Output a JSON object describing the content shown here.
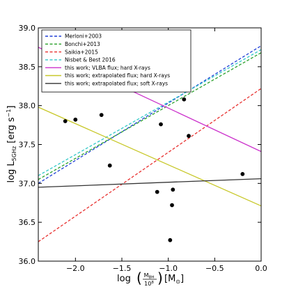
{
  "chart_data": {
    "type": "scatter",
    "xlim": [
      -2.4,
      0.0
    ],
    "ylim": [
      36.0,
      39.0
    ],
    "grid": false,
    "legend_position": "top-left",
    "xlabel": {
      "prefix": "log",
      "num": "M",
      "num_sub": "BH",
      "den": "10",
      "den_sup": "8",
      "unit": "[M",
      "unit_sub": "⊙",
      "unit_end": "]"
    },
    "ylabel": {
      "prefix": "log L",
      "sub": "5GHz",
      "unit": "[erg s",
      "unit_sup": "−1",
      "unit_end": "]"
    },
    "x_ticks": [
      {
        "value": -2.0,
        "label": "−2.0"
      },
      {
        "value": -1.5,
        "label": "−1.5"
      },
      {
        "value": -1.0,
        "label": "−1.0"
      },
      {
        "value": -0.5,
        "label": "−0.5"
      },
      {
        "value": 0.0,
        "label": "0.0"
      }
    ],
    "y_ticks": [
      {
        "value": 36.0,
        "label": "36.0"
      },
      {
        "value": 36.5,
        "label": "36.5"
      },
      {
        "value": 37.0,
        "label": "37.0"
      },
      {
        "value": 37.5,
        "label": "37.5"
      },
      {
        "value": 38.0,
        "label": "38.0"
      },
      {
        "value": 38.5,
        "label": "38.5"
      },
      {
        "value": 39.0,
        "label": "39.0"
      }
    ],
    "points": [
      {
        "x": -2.11,
        "y": 37.8
      },
      {
        "x": -2.0,
        "y": 37.82
      },
      {
        "x": -1.72,
        "y": 37.88
      },
      {
        "x": -1.63,
        "y": 37.23
      },
      {
        "x": -1.12,
        "y": 36.89
      },
      {
        "x": -1.08,
        "y": 37.76
      },
      {
        "x": -0.98,
        "y": 36.27
      },
      {
        "x": -0.96,
        "y": 36.72
      },
      {
        "x": -0.95,
        "y": 36.92
      },
      {
        "x": -0.83,
        "y": 38.08
      },
      {
        "x": -0.78,
        "y": 37.61
      },
      {
        "x": -0.2,
        "y": 37.12
      }
    ],
    "series": [
      {
        "name": "Merloni+2003",
        "color": "#1f3fd6",
        "dashed": true,
        "x": [
          -2.4,
          0.0
        ],
        "y": [
          37.0,
          38.77
        ]
      },
      {
        "name": "Bonchi+2013",
        "color": "#2aa02a",
        "dashed": true,
        "x": [
          -2.4,
          0.0
        ],
        "y": [
          37.05,
          38.68
        ]
      },
      {
        "name": "Saikia+2015",
        "color": "#e8302f",
        "dashed": true,
        "x": [
          -2.4,
          0.0
        ],
        "y": [
          36.25,
          38.22
        ]
      },
      {
        "name": "Nisbet & Best 2016",
        "color": "#30c8c8",
        "dashed": true,
        "x": [
          -2.4,
          0.0
        ],
        "y": [
          37.1,
          38.72
        ]
      },
      {
        "name": "this work; VLBA flux; hard X-rays",
        "color": "#cc33cc",
        "dashed": false,
        "x": [
          -2.4,
          0.0
        ],
        "y": [
          38.75,
          37.41
        ]
      },
      {
        "name": "this work; extrapolated flux; hard X-rays",
        "color": "#c8c82a",
        "dashed": false,
        "x": [
          -2.4,
          0.0
        ],
        "y": [
          37.98,
          36.71
        ]
      },
      {
        "name": "this work; extrapolated flux; soft X-rays",
        "color": "#333333",
        "dashed": false,
        "x": [
          -2.4,
          0.0
        ],
        "y": [
          36.95,
          37.06
        ]
      }
    ]
  }
}
